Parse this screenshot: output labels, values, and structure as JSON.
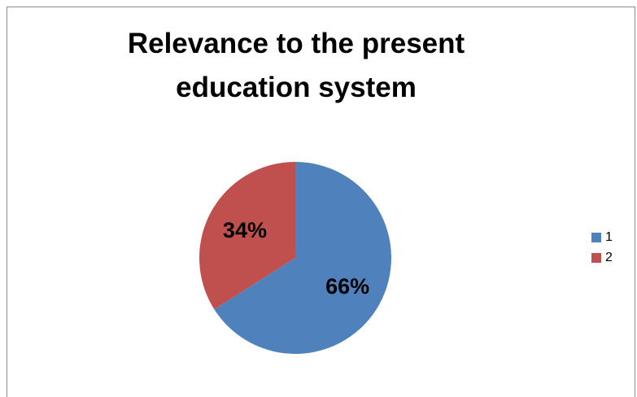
{
  "chart_data": {
    "type": "pie",
    "title": "Relevance to the present education system",
    "categories": [
      "1",
      "2"
    ],
    "values": [
      66,
      34
    ],
    "data_labels": [
      "66%",
      "34%"
    ],
    "colors": [
      "#4f81bd",
      "#c0504d"
    ],
    "legend": {
      "placement": "right",
      "entries": [
        "1",
        "2"
      ]
    }
  }
}
